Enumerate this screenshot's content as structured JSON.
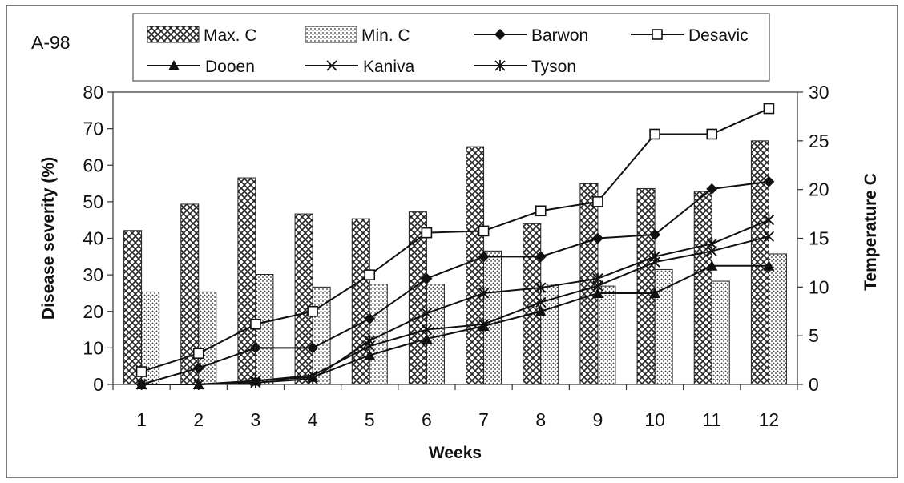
{
  "chart_data": {
    "type": "bar",
    "panel_label": "A-98",
    "xlabel": "Weeks",
    "ylabel": "Disease severity (%)",
    "y2label": "Temperature C",
    "categories": [
      "1",
      "2",
      "3",
      "4",
      "5",
      "6",
      "7",
      "8",
      "9",
      "10",
      "11",
      "12"
    ],
    "ylim": [
      0,
      80
    ],
    "yticks": [
      "0",
      "10",
      "20",
      "30",
      "40",
      "50",
      "60",
      "70",
      "80"
    ],
    "y2lim": [
      0,
      30
    ],
    "y2ticks": [
      "0",
      "5",
      "10",
      "15",
      "20",
      "25",
      "30"
    ],
    "legend_position": "top",
    "bar_series": [
      {
        "name": "Max. C",
        "axis": "right",
        "values": [
          15.8,
          18.5,
          21.2,
          17.5,
          17.0,
          17.7,
          24.4,
          16.5,
          20.6,
          20.1,
          19.8,
          25.0
        ]
      },
      {
        "name": "Min. C",
        "axis": "right",
        "values": [
          9.5,
          9.5,
          11.3,
          10.0,
          10.3,
          10.3,
          13.7,
          10.3,
          10.1,
          11.8,
          10.6,
          13.4
        ]
      }
    ],
    "line_series": [
      {
        "name": "Barwon",
        "marker": "diamond",
        "values": [
          0,
          4.5,
          10,
          10,
          18,
          29,
          35,
          35,
          40,
          41,
          53.5,
          55.5
        ]
      },
      {
        "name": "Desavic",
        "marker": "square-open",
        "values": [
          3.5,
          8.5,
          16.5,
          20,
          30,
          41.5,
          42,
          47.5,
          50,
          68.5,
          68.5,
          75.5
        ]
      },
      {
        "name": "Dooen",
        "marker": "triangle",
        "values": [
          0,
          0,
          1,
          2,
          8,
          12.5,
          16,
          20,
          25,
          25,
          32.5,
          32.5
        ]
      },
      {
        "name": "Kaniva",
        "marker": "x",
        "values": [
          0,
          0,
          1,
          2.5,
          10.5,
          15,
          16.5,
          22.5,
          27,
          33.5,
          36.5,
          40.5
        ]
      },
      {
        "name": "Tyson",
        "marker": "asterisk",
        "values": [
          0,
          0,
          0.5,
          1.5,
          12,
          19.5,
          25,
          26.5,
          29,
          35,
          38.5,
          45
        ]
      }
    ],
    "colors": {
      "bars": "#222222",
      "lines": "#111111",
      "background": "#ffffff"
    }
  }
}
